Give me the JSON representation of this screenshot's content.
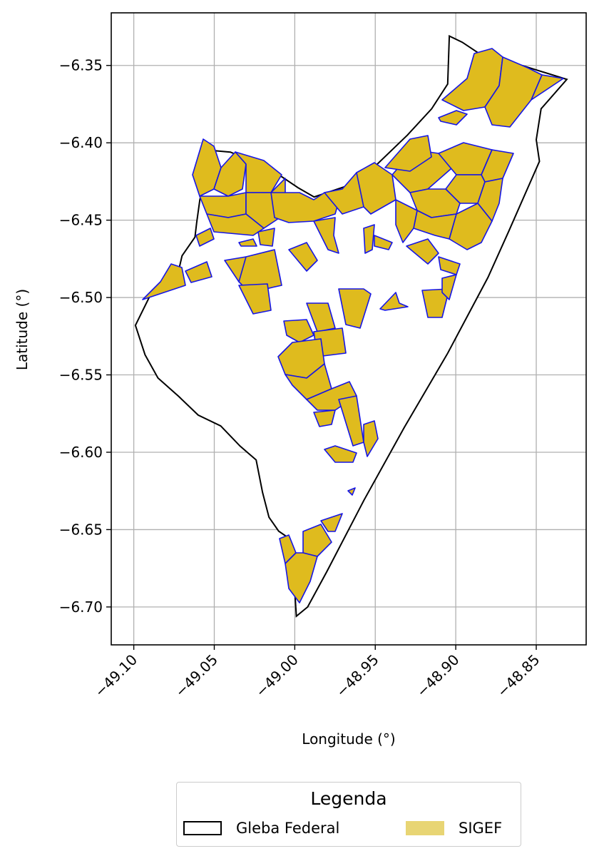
{
  "figure": {
    "xlabel": "Longitude (°)",
    "ylabel": "Latitude (°)",
    "x_ticks": [
      "−49.10",
      "−49.05",
      "−49.00",
      "−48.95",
      "−48.90",
      "−48.85"
    ],
    "y_ticks": [
      "−6.35",
      "−6.40",
      "−6.45",
      "−6.50",
      "−6.55",
      "−6.60",
      "−6.65",
      "−6.70"
    ]
  },
  "legend": {
    "title": "Legenda",
    "items": [
      {
        "label": "Gleba Federal",
        "fill": "#ffffff",
        "stroke": "#000000"
      },
      {
        "label": "SIGEF",
        "fill": "#e8d574",
        "stroke": "none"
      }
    ]
  },
  "colors": {
    "parcel_fill": "#dfbb1e",
    "parcel_edge": "#1515e6",
    "boundary": "#000000",
    "grid": "#b0b0b0"
  },
  "chart_data": {
    "type": "map",
    "xlim": [
      -49.114,
      -48.819
    ],
    "ylim": [
      -6.7245,
      -6.316
    ],
    "x_ticks": [
      -49.1,
      -49.05,
      -49.0,
      -48.95,
      -48.9,
      -48.85
    ],
    "y_ticks": [
      -6.35,
      -6.4,
      -6.45,
      -6.5,
      -6.55,
      -6.6,
      -6.65,
      -6.7
    ],
    "grid": true,
    "legend_position": "below",
    "layers": [
      {
        "name": "Gleba Federal",
        "geometry": "polygon outline",
        "outline": [
          [
            -48.904,
            -6.331
          ],
          [
            -48.896,
            -6.335
          ],
          [
            -48.883,
            -6.344
          ],
          [
            -48.862,
            -6.349
          ],
          [
            -48.831,
            -6.359
          ],
          [
            -48.847,
            -6.378
          ],
          [
            -48.85,
            -6.398
          ],
          [
            -48.848,
            -6.412
          ],
          [
            -48.867,
            -6.457
          ],
          [
            -48.88,
            -6.487
          ],
          [
            -48.905,
            -6.536
          ],
          [
            -48.932,
            -6.584
          ],
          [
            -48.957,
            -6.631
          ],
          [
            -48.98,
            -6.677
          ],
          [
            -48.992,
            -6.7
          ],
          [
            -48.999,
            -6.706
          ],
          [
            -49.0,
            -6.69
          ],
          [
            -49.003,
            -6.672
          ],
          [
            -49.003,
            -6.656
          ],
          [
            -49.01,
            -6.651
          ],
          [
            -49.016,
            -6.642
          ],
          [
            -49.02,
            -6.626
          ],
          [
            -49.024,
            -6.605
          ],
          [
            -49.034,
            -6.596
          ],
          [
            -49.046,
            -6.583
          ],
          [
            -49.06,
            -6.576
          ],
          [
            -49.072,
            -6.564
          ],
          [
            -49.085,
            -6.552
          ],
          [
            -49.093,
            -6.537
          ],
          [
            -49.099,
            -6.518
          ],
          [
            -49.09,
            -6.499
          ],
          [
            -49.074,
            -6.491
          ],
          [
            -49.07,
            -6.473
          ],
          [
            -49.062,
            -6.461
          ],
          [
            -49.061,
            -6.452
          ],
          [
            -49.059,
            -6.437
          ],
          [
            -49.056,
            -6.423
          ],
          [
            -49.059,
            -6.412
          ],
          [
            -49.051,
            -6.405
          ],
          [
            -49.04,
            -6.406
          ],
          [
            -49.024,
            -6.413
          ],
          [
            -49.008,
            -6.422
          ],
          [
            -48.998,
            -6.429
          ],
          [
            -48.988,
            -6.435
          ],
          [
            -48.968,
            -6.428
          ],
          [
            -48.95,
            -6.415
          ],
          [
            -48.93,
            -6.395
          ],
          [
            -48.915,
            -6.378
          ],
          [
            -48.905,
            -6.362
          ],
          [
            -48.904,
            -6.331
          ]
        ]
      },
      {
        "name": "SIGEF",
        "geometry": "cadastral parcels",
        "parcel_extents": [
          {
            "lon": [
              -49.04,
              -49.005
            ],
            "lat": [
              -6.445,
              -6.41
            ]
          },
          {
            "lon": [
              -49.015,
              -48.94
            ],
            "lat": [
              -6.455,
              -6.43
            ]
          },
          {
            "lon": [
              -48.96,
              -48.93
            ],
            "lat": [
              -6.445,
              -6.415
            ]
          },
          {
            "lon": [
              -48.93,
              -48.86
            ],
            "lat": [
              -6.47,
              -6.402
            ]
          },
          {
            "lon": [
              -48.905,
              -48.835
            ],
            "lat": [
              -6.39,
              -6.334
            ]
          },
          {
            "lon": [
              -49.092,
              -49.07
            ],
            "lat": [
              -6.502,
              -6.483
            ]
          },
          {
            "lon": [
              -49.03,
              -49.01
            ],
            "lat": [
              -6.51,
              -6.47
            ]
          },
          {
            "lon": [
              -48.978,
              -48.955
            ],
            "lat": [
              -6.53,
              -6.495
            ]
          },
          {
            "lon": [
              -48.995,
              -48.965
            ],
            "lat": [
              -6.56,
              -6.525
            ]
          },
          {
            "lon": [
              -48.98,
              -48.95
            ],
            "lat": [
              -6.6,
              -6.555
            ]
          },
          {
            "lon": [
              -48.895,
              -48.885
            ],
            "lat": [
              -6.525,
              -6.495
            ]
          },
          {
            "lon": [
              -49.0,
              -48.965
            ],
            "lat": [
              -6.7,
              -6.65
            ]
          }
        ]
      }
    ]
  }
}
